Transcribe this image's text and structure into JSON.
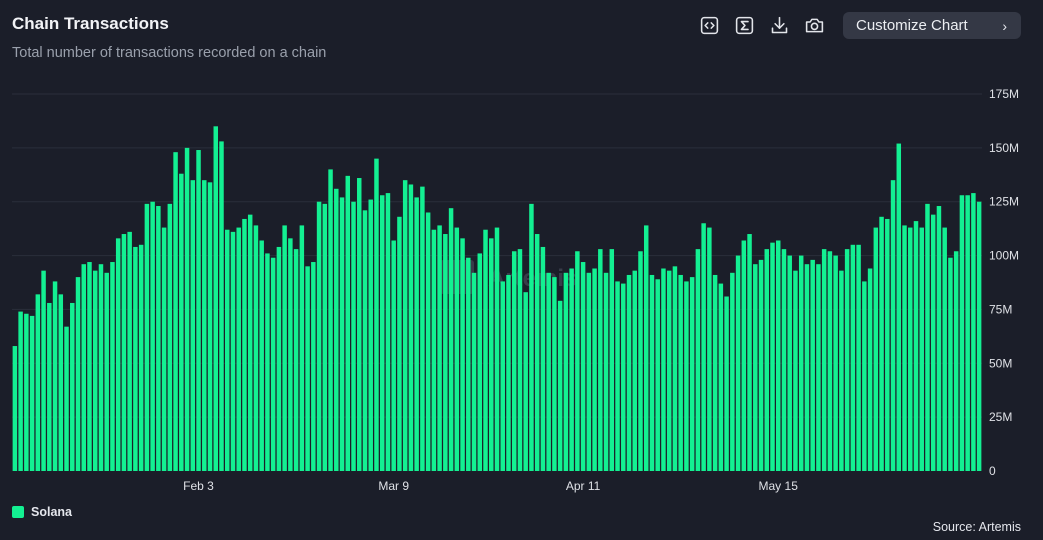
{
  "header": {
    "title": "Chain Transactions",
    "subtitle": "Total number of transactions recorded on a chain"
  },
  "toolbar": {
    "icons": [
      "embed-code-icon",
      "sigma-icon",
      "download-icon",
      "camera-icon"
    ],
    "customize_label": "Customize Chart",
    "customize_chevron": "›"
  },
  "legend": {
    "label": "Solana",
    "color": "#13f092"
  },
  "source": "Source: Artemis",
  "watermark": "Artemis",
  "colors": {
    "background": "#1b1e29",
    "bar": "#13f092",
    "grid": "#2b2f3b",
    "tick": "#dfe1e6"
  },
  "chart_data": {
    "type": "bar",
    "title": "Chain Transactions",
    "subtitle": "Total number of transactions recorded on a chain",
    "xlabel": "",
    "ylabel": "",
    "ylim": [
      0,
      175
    ],
    "y_unit": "M",
    "y_ticks": [
      "0",
      "25M",
      "50M",
      "75M",
      "100M",
      "125M",
      "150M",
      "175M"
    ],
    "y_tick_values": [
      0,
      25,
      50,
      75,
      100,
      125,
      150,
      175
    ],
    "x_tick_labels": [
      {
        "label": "Feb 3",
        "index": 32
      },
      {
        "label": "Mar 9",
        "index": 66
      },
      {
        "label": "Apr 11",
        "index": 99
      },
      {
        "label": "May 15",
        "index": 133
      }
    ],
    "grid": true,
    "legend_position": "bottom-left",
    "series": [
      {
        "name": "Solana",
        "values": [
          58,
          74,
          73,
          72,
          82,
          93,
          78,
          88,
          82,
          67,
          78,
          90,
          96,
          97,
          93,
          96,
          92,
          97,
          108,
          110,
          111,
          104,
          105,
          124,
          125,
          123,
          113,
          124,
          148,
          138,
          150,
          135,
          149,
          135,
          134,
          160,
          153,
          112,
          111,
          113,
          117,
          119,
          114,
          107,
          101,
          99,
          104,
          114,
          108,
          103,
          114,
          95,
          97,
          125,
          124,
          140,
          131,
          127,
          137,
          125,
          136,
          121,
          126,
          145,
          128,
          129,
          107,
          118,
          135,
          133,
          127,
          132,
          120,
          112,
          114,
          110,
          122,
          113,
          108,
          99,
          92,
          101,
          112,
          108,
          113,
          88,
          91,
          102,
          103,
          83,
          124,
          110,
          104,
          92,
          90,
          79,
          92,
          94,
          102,
          97,
          92,
          94,
          103,
          92,
          103,
          88,
          87,
          91,
          93,
          102,
          114,
          91,
          89,
          94,
          93,
          95,
          91,
          88,
          90,
          103,
          115,
          113,
          91,
          87,
          81,
          92,
          100,
          107,
          110,
          96,
          98,
          103,
          106,
          107,
          103,
          100,
          93,
          100,
          96,
          98,
          96,
          103,
          102,
          100,
          93,
          103,
          105,
          105,
          88,
          94,
          113,
          118,
          117,
          135,
          152,
          114,
          113,
          116,
          113,
          124,
          119,
          123,
          113,
          99,
          102,
          128,
          128,
          129,
          125
        ]
      }
    ]
  }
}
